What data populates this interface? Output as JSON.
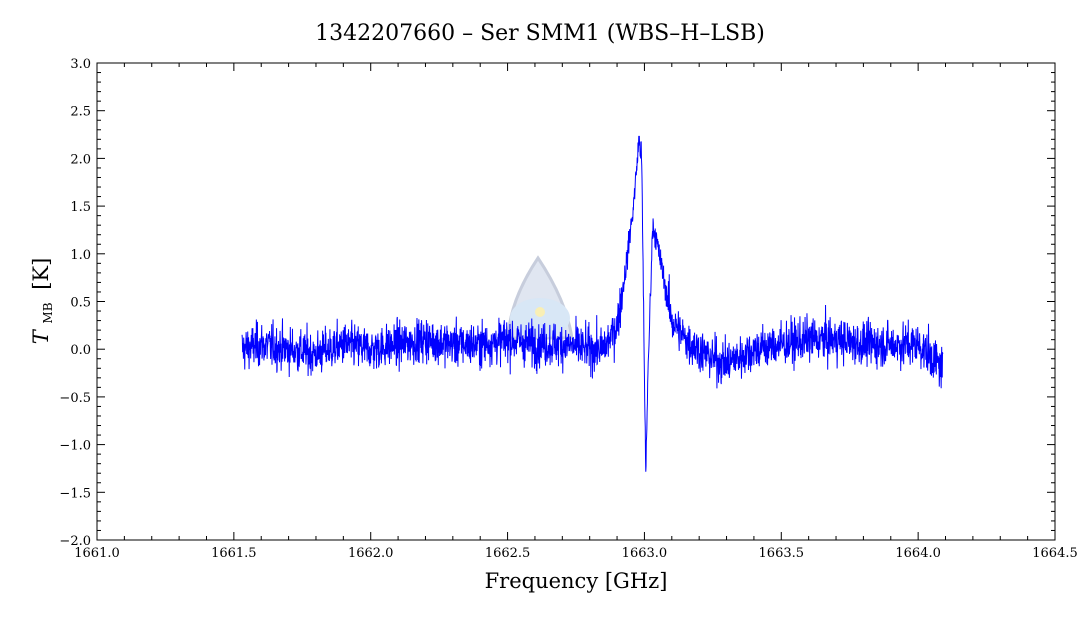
{
  "chart_data": {
    "type": "line",
    "title": "1342207660 – Ser SMM1 (WBS–H–LSB)",
    "xlabel": "Frequency [GHz]",
    "ylabel_main": "T",
    "ylabel_sub": "MB",
    "ylabel_unit": "[K]",
    "xlim": [
      1661.0,
      1664.5
    ],
    "ylim": [
      -2.0,
      3.0
    ],
    "x_ticks": [
      "1661.0",
      "1661.5",
      "1662.0",
      "1662.5",
      "1663.0",
      "1663.5",
      "1664.0",
      "1664.5"
    ],
    "y_ticks": [
      "3.0",
      "2.5",
      "2.0",
      "1.5",
      "1.0",
      "0.5",
      "0.0",
      "−0.5",
      "−1.0",
      "−1.5",
      "−2.0"
    ],
    "grid": false,
    "line_color": "#0000ff",
    "series": [
      {
        "x": [
          1661.53,
          1661.6,
          1661.7,
          1661.8,
          1661.9,
          1662.0,
          1662.1,
          1662.2,
          1662.3,
          1662.4,
          1662.5,
          1662.6,
          1662.7,
          1662.8,
          1662.85,
          1662.9,
          1662.93,
          1662.96,
          1662.98,
          1662.99,
          1663.0,
          1663.005,
          1663.01,
          1663.02,
          1663.03,
          1663.04,
          1663.06,
          1663.08,
          1663.1,
          1663.15,
          1663.2,
          1663.25,
          1663.3,
          1663.4,
          1663.5,
          1663.6,
          1663.7,
          1663.8,
          1663.9,
          1664.0,
          1664.09
        ],
        "y": [
          0.0,
          0.05,
          0.0,
          -0.05,
          0.05,
          0.0,
          0.05,
          0.1,
          0.05,
          0.05,
          0.1,
          0.05,
          0.05,
          0.0,
          0.0,
          0.25,
          0.8,
          1.5,
          2.2,
          2.0,
          -0.3,
          -1.3,
          -0.6,
          0.4,
          1.3,
          1.2,
          0.9,
          0.6,
          0.3,
          0.1,
          0.0,
          -0.1,
          -0.15,
          0.0,
          0.05,
          0.1,
          0.1,
          0.05,
          0.05,
          0.05,
          -0.2
        ],
        "noise_rms": 0.16
      }
    ]
  }
}
